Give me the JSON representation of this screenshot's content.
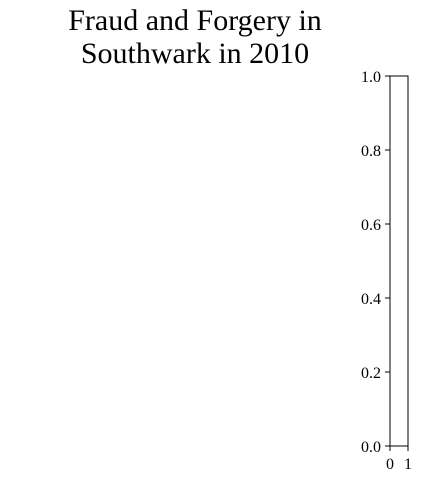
{
  "chart_data": {
    "type": "heatmap",
    "title_lines": [
      "Fraud and Forgery in",
      "Southwark in 2010"
    ],
    "xlabel": "",
    "ylabel": "",
    "x_ticks": [
      "0",
      "1"
    ],
    "y_ticks": [
      "0.0",
      "0.2",
      "0.4",
      "0.6",
      "0.8",
      "1.0"
    ],
    "ylim": [
      0,
      1
    ],
    "values": [],
    "grid": false
  },
  "colors": {
    "axis": "#000000",
    "background": "#ffffff"
  }
}
